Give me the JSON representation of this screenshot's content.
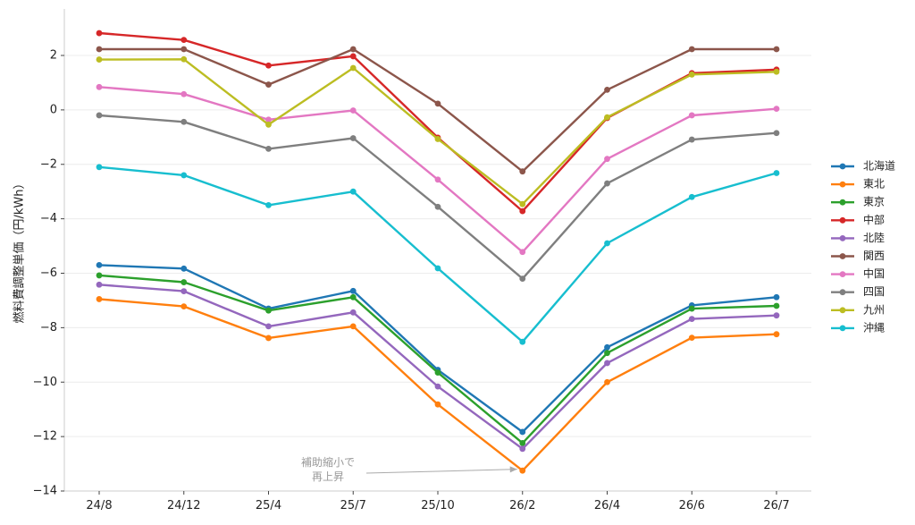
{
  "chart_data": {
    "type": "line",
    "title": "",
    "xlabel": "",
    "ylabel": "燃料費調整単価（円/kWh）",
    "categories": [
      "24/8",
      "24/12",
      "25/4",
      "25/7",
      "25/10",
      "26/2",
      "26/4",
      "26/6",
      "26/7"
    ],
    "ylim": [
      -14,
      3.5
    ],
    "yticks": [
      -14,
      -12,
      -10,
      -8,
      -6,
      -4,
      -2,
      0,
      2
    ],
    "ytick_labels": [
      "−14",
      "−12",
      "−10",
      "−8",
      "−6",
      "−4",
      "−2",
      "0",
      "2"
    ],
    "grid": "horizontal",
    "legend": "right",
    "series": [
      {
        "name": "北海道",
        "color": "#1f77b4",
        "values": [
          -5.7,
          -5.83,
          -7.3,
          -6.65,
          -9.55,
          -11.83,
          -8.72,
          -7.18,
          -6.88
        ]
      },
      {
        "name": "東北",
        "color": "#ff7f0e",
        "values": [
          -6.95,
          -7.22,
          -8.38,
          -7.95,
          -10.82,
          -13.25,
          -10.0,
          -8.37,
          -8.24
        ]
      },
      {
        "name": "東京",
        "color": "#2ca02c",
        "values": [
          -6.08,
          -6.33,
          -7.37,
          -6.88,
          -9.65,
          -12.24,
          -8.93,
          -7.3,
          -7.2
        ]
      },
      {
        "name": "中部",
        "color": "#d62728",
        "values": [
          2.82,
          2.57,
          1.63,
          1.97,
          -1.02,
          -3.72,
          -0.3,
          1.35,
          1.48
        ]
      },
      {
        "name": "北陸",
        "color": "#9467bd",
        "values": [
          -6.42,
          -6.66,
          -7.95,
          -7.44,
          -10.16,
          -12.45,
          -9.3,
          -7.68,
          -7.55
        ]
      },
      {
        "name": "関西",
        "color": "#8c564b",
        "values": [
          2.23,
          2.23,
          0.93,
          2.23,
          0.23,
          -2.26,
          0.74,
          2.23,
          2.23
        ]
      },
      {
        "name": "中国",
        "color": "#e377c2",
        "values": [
          0.84,
          0.58,
          -0.36,
          -0.02,
          -2.56,
          -5.22,
          -1.8,
          -0.2,
          0.04
        ]
      },
      {
        "name": "四国",
        "color": "#7f7f7f",
        "values": [
          -0.2,
          -0.44,
          -1.43,
          -1.04,
          -3.56,
          -6.2,
          -2.7,
          -1.09,
          -0.85
        ]
      },
      {
        "name": "九州",
        "color": "#bcbd22",
        "values": [
          1.85,
          1.86,
          -0.54,
          1.54,
          -1.07,
          -3.46,
          -0.27,
          1.3,
          1.4
        ]
      },
      {
        "name": "沖縄",
        "color": "#17becf",
        "values": [
          -2.1,
          -2.4,
          -3.5,
          -3.0,
          -5.82,
          -8.52,
          -4.9,
          -3.2,
          -2.32
        ]
      }
    ],
    "annotations": [
      {
        "text_lines": [
          "補助縮小で",
          "再上昇"
        ],
        "points_to": {
          "x": "26/2",
          "y": -13.2
        }
      }
    ]
  }
}
